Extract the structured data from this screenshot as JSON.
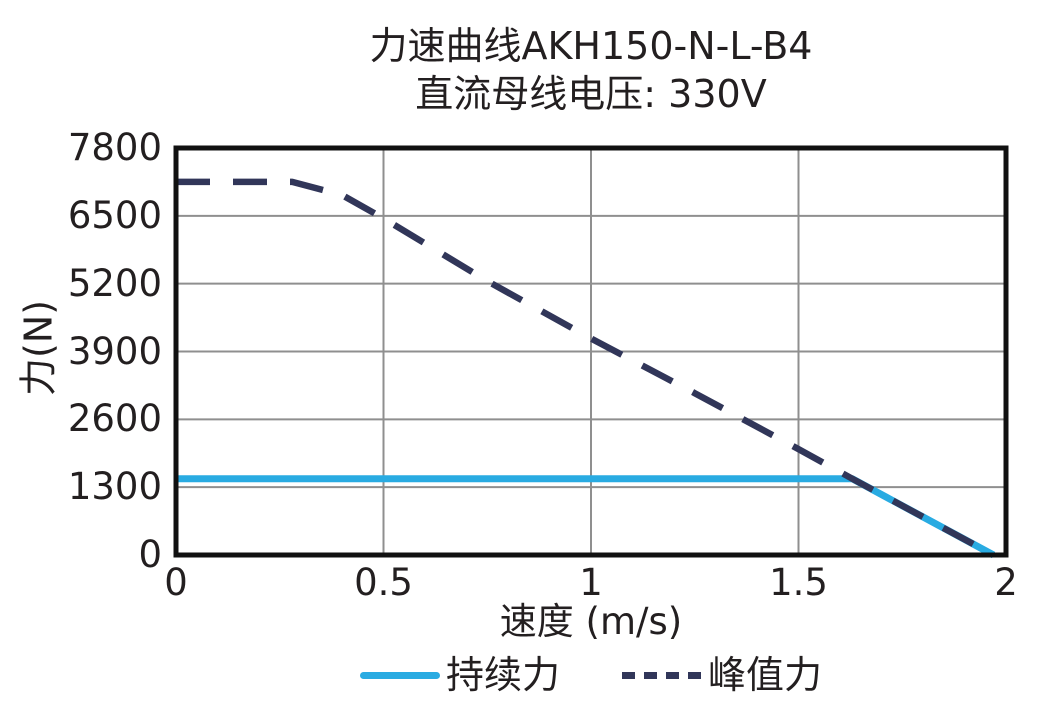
{
  "colors": {
    "background": "#ffffff",
    "text": "#231f20",
    "grid": "#8f8f8f",
    "border": "#111111",
    "continuous": "#29ABE2",
    "peak": "#313659"
  },
  "chart_data": {
    "type": "line",
    "title": "力速曲线AKH150-N-L-B4",
    "subtitle": "直流母线电压: 330V",
    "xlabel": "速度 (m/s)",
    "ylabel": "力(N)",
    "xlim": [
      0,
      2
    ],
    "ylim": [
      0,
      7800
    ],
    "xticks": [
      0,
      0.5,
      1,
      1.5,
      2
    ],
    "xtick_labels": [
      "0",
      "0.5",
      "1",
      "1.5",
      "2"
    ],
    "yticks": [
      0,
      1300,
      2600,
      3900,
      5200,
      6500,
      7800
    ],
    "ytick_labels": [
      "0",
      "1300",
      "2600",
      "3900",
      "5200",
      "6500",
      "7800"
    ],
    "grid": "on",
    "legend_position": "bottom",
    "series": [
      {
        "name": "持续力",
        "style": "solid",
        "color": "#29ABE2",
        "points": [
          [
            0,
            1460
          ],
          [
            1.63,
            1460
          ],
          [
            1.97,
            0
          ]
        ]
      },
      {
        "name": "峰值力",
        "style": "dashed",
        "color": "#313659",
        "points": [
          [
            0,
            7150
          ],
          [
            0.28,
            7150
          ],
          [
            0.4,
            6900
          ],
          [
            0.5,
            6450
          ],
          [
            0.75,
            5250
          ],
          [
            1.0,
            4150
          ],
          [
            1.25,
            3100
          ],
          [
            1.5,
            2030
          ],
          [
            1.63,
            1460
          ],
          [
            1.97,
            0
          ]
        ]
      }
    ]
  }
}
